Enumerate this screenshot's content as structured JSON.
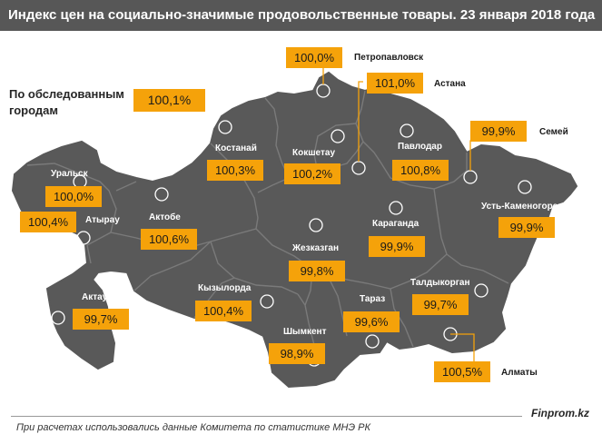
{
  "title": "Индекс цен на социально-значимые продовольственные товары. 23 января 2018 года",
  "summary": {
    "label": "По обследованным городам",
    "value": "100,1%"
  },
  "cities": {
    "petropavlovsk": {
      "name": "Петропавловск",
      "value": "100,0%"
    },
    "astana": {
      "name": "Астана",
      "value": "101,0%"
    },
    "kostanay": {
      "name": "Костанай",
      "value": "100,3%"
    },
    "kokshetau": {
      "name": "Кокшетау",
      "value": "100,2%"
    },
    "pavlodar": {
      "name": "Павлодар",
      "value": "100,8%"
    },
    "semey": {
      "name": "Семей",
      "value": "99,9%"
    },
    "uralsk": {
      "name": "Уральск",
      "value": "100,0%"
    },
    "atyrau": {
      "name": "Атырау",
      "value": "100,4%"
    },
    "aktobe": {
      "name": "Актобе",
      "value": "100,6%"
    },
    "karaganda": {
      "name": "Караганда",
      "value": "99,9%"
    },
    "ust_kamenogorsk": {
      "name": "Усть-Каменогорск",
      "value": "99,9%"
    },
    "zhezkazgan": {
      "name": "Жезказган",
      "value": "99,8%"
    },
    "aktau": {
      "name": "Актау",
      "value": "99,7%"
    },
    "kyzylorda": {
      "name": "Кызылорда",
      "value": "100,4%"
    },
    "taldykorgan": {
      "name": "Талдыкорган",
      "value": "99,7%"
    },
    "taraz": {
      "name": "Тараз",
      "value": "99,6%"
    },
    "shymkent": {
      "name": "Шымкент",
      "value": "98,9%"
    },
    "almaty": {
      "name": "Алматы",
      "value": "100,5%"
    }
  },
  "brand": "Finprom.kz",
  "footnote": "При расчетах использовались данные Комитета по статистике МНЭ РК",
  "colors": {
    "map_fill": "#595959",
    "border": "#7a7a7a",
    "badge": "#f5a20a",
    "title_bar": "#575757"
  }
}
